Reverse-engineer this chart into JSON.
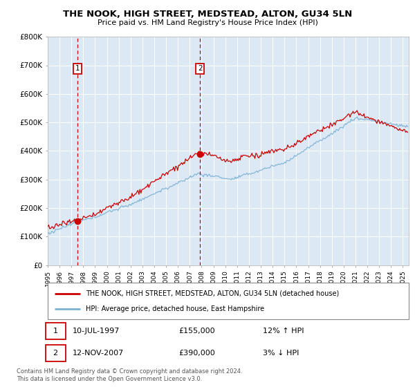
{
  "title": "THE NOOK, HIGH STREET, MEDSTEAD, ALTON, GU34 5LN",
  "subtitle": "Price paid vs. HM Land Registry's House Price Index (HPI)",
  "plot_bg_color": "#dce9f5",
  "ylim": [
    0,
    800000
  ],
  "yticks": [
    0,
    100000,
    200000,
    300000,
    400000,
    500000,
    600000,
    700000,
    800000
  ],
  "ytick_labels": [
    "£0",
    "£100K",
    "£200K",
    "£300K",
    "£400K",
    "£500K",
    "£600K",
    "£700K",
    "£800K"
  ],
  "xlim_start": 1995.0,
  "xlim_end": 2025.5,
  "xtick_years": [
    1995,
    1996,
    1997,
    1998,
    1999,
    2000,
    2001,
    2002,
    2003,
    2004,
    2005,
    2006,
    2007,
    2008,
    2009,
    2010,
    2011,
    2012,
    2013,
    2014,
    2015,
    2016,
    2017,
    2018,
    2019,
    2020,
    2021,
    2022,
    2023,
    2024,
    2025
  ],
  "sale1_x": 1997.53,
  "sale1_y": 155000,
  "sale2_x": 2007.87,
  "sale2_y": 390000,
  "sale_color": "#cc0000",
  "hpi_color": "#7ab0d4",
  "legend_label_property": "THE NOOK, HIGH STREET, MEDSTEAD, ALTON, GU34 5LN (detached house)",
  "legend_label_hpi": "HPI: Average price, detached house, East Hampshire",
  "table_row1": [
    "1",
    "10-JUL-1997",
    "£155,000",
    "12% ↑ HPI"
  ],
  "table_row2": [
    "2",
    "12-NOV-2007",
    "£390,000",
    "3% ↓ HPI"
  ],
  "footer": "Contains HM Land Registry data © Crown copyright and database right 2024.\nThis data is licensed under the Open Government Licence v3.0.",
  "grid_color": "#ffffff",
  "dashed_line_color": "#cc0000",
  "number_box_color": "#cc0000"
}
